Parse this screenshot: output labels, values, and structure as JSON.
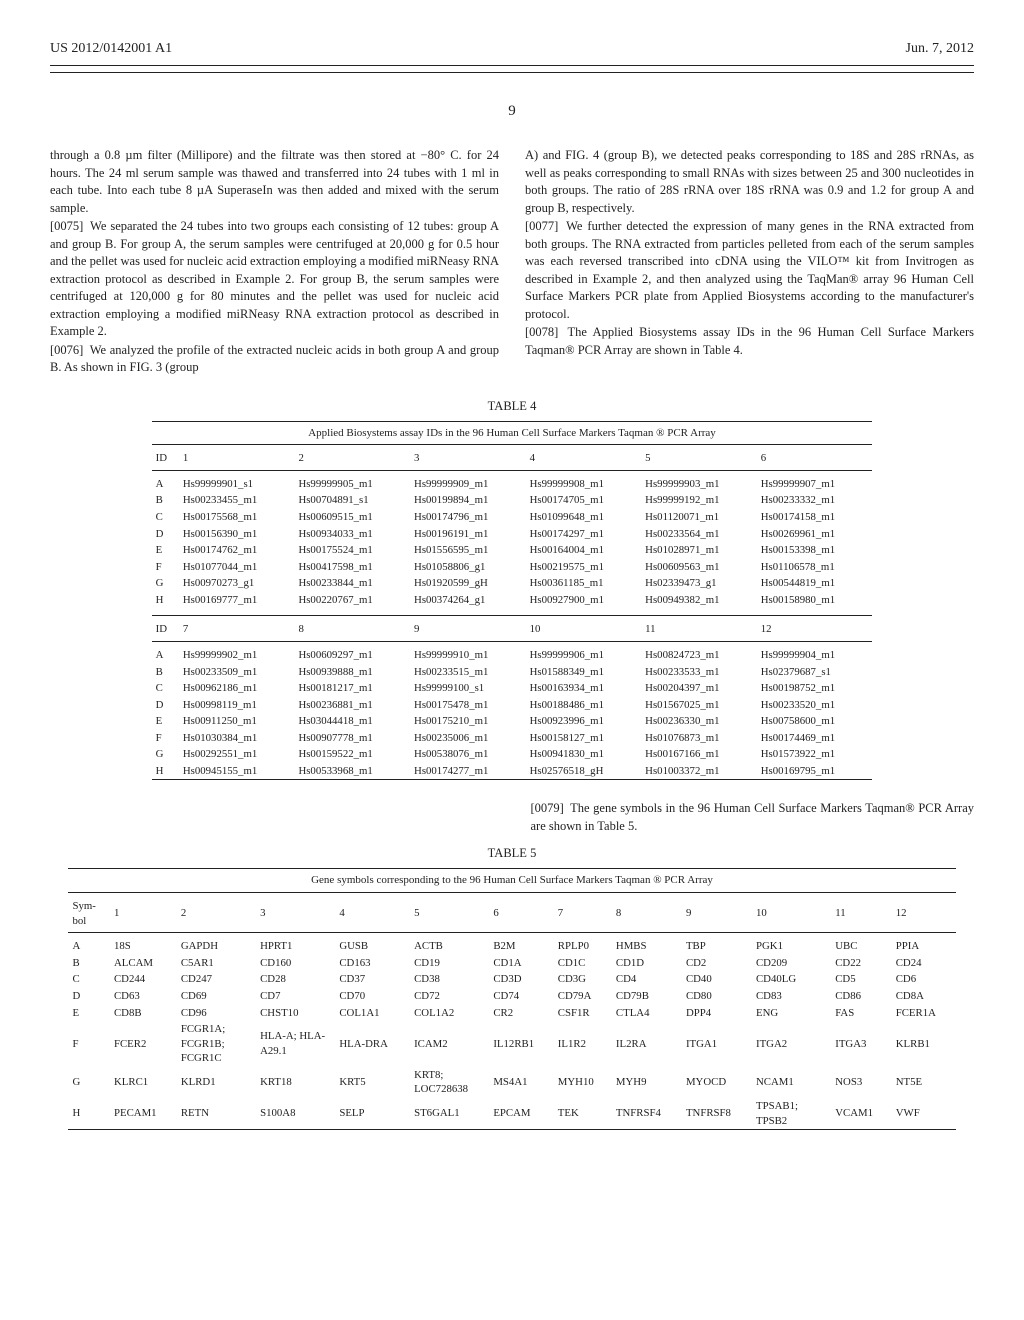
{
  "header": {
    "patent_id": "US 2012/0142001 A1",
    "date": "Jun. 7, 2012"
  },
  "page_number": "9",
  "left_col": {
    "p1": "through a 0.8 µm filter (Millipore) and the filtrate was then stored at −80° C. for 24 hours. The 24 ml serum sample was thawed and transferred into 24 tubes with 1 ml in each tube. Into each tube 8 µA SuperaseIn was then added and mixed with the serum sample.",
    "p2_num": "[0075]",
    "p2": "We separated the 24 tubes into two groups each consisting of 12 tubes: group A and group B. For group A, the serum samples were centrifuged at 20,000 g for 0.5 hour and the pellet was used for nucleic acid extraction employing a modified miRNeasy RNA extraction protocol as described in Example 2. For group B, the serum samples were centrifuged at 120,000 g for 80 minutes and the pellet was used for nucleic acid extraction employing a modified miRNeasy RNA extraction protocol as described in Example 2.",
    "p3_num": "[0076]",
    "p3": "We analyzed the profile of the extracted nucleic acids in both group A and group B. As shown in FIG. 3 (group"
  },
  "right_col": {
    "p1": "A) and FIG. 4 (group B), we detected peaks corresponding to 18S and 28S rRNAs, as well as peaks corresponding to small RNAs with sizes between 25 and 300 nucleotides in both groups. The ratio of 28S rRNA over 18S rRNA was 0.9 and 1.2 for group A and group B, respectively.",
    "p2_num": "[0077]",
    "p2": "We further detected the expression of many genes in the RNA extracted from both groups. The RNA extracted from particles pelleted from each of the serum samples was each reversed transcribed into cDNA using the VILO™ kit from Invitrogen as described in Example 2, and then analyzed using the TaqMan® array 96 Human Cell Surface Markers PCR plate from Applied Biosystems according to the manufacturer's protocol.",
    "p3_num": "[0078]",
    "p3": "The Applied Biosystems assay IDs in the 96 Human Cell Surface Markers Taqman® PCR Array are shown in Table 4."
  },
  "table4": {
    "label": "TABLE 4",
    "caption": "Applied Biosystems assay IDs in the 96 Human Cell Surface Markers Taqman ® PCR Array",
    "section1": {
      "head": [
        "ID",
        "1",
        "2",
        "3",
        "4",
        "5",
        "6"
      ],
      "rows": [
        [
          "A",
          "Hs99999901_s1",
          "Hs99999905_m1",
          "Hs99999909_m1",
          "Hs99999908_m1",
          "Hs99999903_m1",
          "Hs99999907_m1"
        ],
        [
          "B",
          "Hs00233455_m1",
          "Hs00704891_s1",
          "Hs00199894_m1",
          "Hs00174705_m1",
          "Hs99999192_m1",
          "Hs00233332_m1"
        ],
        [
          "C",
          "Hs00175568_m1",
          "Hs00609515_m1",
          "Hs00174796_m1",
          "Hs01099648_m1",
          "Hs01120071_m1",
          "Hs00174158_m1"
        ],
        [
          "D",
          "Hs00156390_m1",
          "Hs00934033_m1",
          "Hs00196191_m1",
          "Hs00174297_m1",
          "Hs00233564_m1",
          "Hs00269961_m1"
        ],
        [
          "E",
          "Hs00174762_m1",
          "Hs00175524_m1",
          "Hs01556595_m1",
          "Hs00164004_m1",
          "Hs01028971_m1",
          "Hs00153398_m1"
        ],
        [
          "F",
          "Hs01077044_m1",
          "Hs00417598_m1",
          "Hs01058806_g1",
          "Hs00219575_m1",
          "Hs00609563_m1",
          "Hs01106578_m1"
        ],
        [
          "G",
          "Hs00970273_g1",
          "Hs00233844_m1",
          "Hs01920599_gH",
          "Hs00361185_m1",
          "Hs02339473_g1",
          "Hs00544819_m1"
        ],
        [
          "H",
          "Hs00169777_m1",
          "Hs00220767_m1",
          "Hs00374264_g1",
          "Hs00927900_m1",
          "Hs00949382_m1",
          "Hs00158980_m1"
        ]
      ]
    },
    "section2": {
      "head": [
        "ID",
        "7",
        "8",
        "9",
        "10",
        "11",
        "12"
      ],
      "rows": [
        [
          "A",
          "Hs99999902_m1",
          "Hs00609297_m1",
          "Hs99999910_m1",
          "Hs99999906_m1",
          "Hs00824723_m1",
          "Hs99999904_m1"
        ],
        [
          "B",
          "Hs00233509_m1",
          "Hs00939888_m1",
          "Hs00233515_m1",
          "Hs01588349_m1",
          "Hs00233533_m1",
          "Hs02379687_s1"
        ],
        [
          "C",
          "Hs00962186_m1",
          "Hs00181217_m1",
          "Hs99999100_s1",
          "Hs00163934_m1",
          "Hs00204397_m1",
          "Hs00198752_m1"
        ],
        [
          "D",
          "Hs00998119_m1",
          "Hs00236881_m1",
          "Hs00175478_m1",
          "Hs00188486_m1",
          "Hs01567025_m1",
          "Hs00233520_m1"
        ],
        [
          "E",
          "Hs00911250_m1",
          "Hs03044418_m1",
          "Hs00175210_m1",
          "Hs00923996_m1",
          "Hs00236330_m1",
          "Hs00758600_m1"
        ],
        [
          "F",
          "Hs01030384_m1",
          "Hs00907778_m1",
          "Hs00235006_m1",
          "Hs00158127_m1",
          "Hs01076873_m1",
          "Hs00174469_m1"
        ],
        [
          "G",
          "Hs00292551_m1",
          "Hs00159522_m1",
          "Hs00538076_m1",
          "Hs00941830_m1",
          "Hs00167166_m1",
          "Hs01573922_m1"
        ],
        [
          "H",
          "Hs00945155_m1",
          "Hs00533968_m1",
          "Hs00174277_m1",
          "Hs02576518_gH",
          "Hs01003372_m1",
          "Hs00169795_m1"
        ]
      ]
    }
  },
  "mid_para": {
    "num": "[0079]",
    "text": "The gene symbols in the 96 Human Cell Surface Markers Taqman® PCR Array are shown in Table 5."
  },
  "table5": {
    "label": "TABLE 5",
    "caption": "Gene symbols corresponding to the 96 Human Cell Surface Markers Taqman ® PCR Array",
    "head": [
      "Sym-\nbol",
      "1",
      "2",
      "3",
      "4",
      "5",
      "6",
      "7",
      "8",
      "9",
      "10",
      "11",
      "12"
    ],
    "rows": [
      [
        "A",
        "18S",
        "GAPDH",
        "HPRT1",
        "GUSB",
        "ACTB",
        "B2M",
        "RPLP0",
        "HMBS",
        "TBP",
        "PGK1",
        "UBC",
        "PPIA"
      ],
      [
        "B",
        "ALCAM",
        "C5AR1",
        "CD160",
        "CD163",
        "CD19",
        "CD1A",
        "CD1C",
        "CD1D",
        "CD2",
        "CD209",
        "CD22",
        "CD24"
      ],
      [
        "C",
        "CD244",
        "CD247",
        "CD28",
        "CD37",
        "CD38",
        "CD3D",
        "CD3G",
        "CD4",
        "CD40",
        "CD40LG",
        "CD5",
        "CD6"
      ],
      [
        "D",
        "CD63",
        "CD69",
        "CD7",
        "CD70",
        "CD72",
        "CD74",
        "CD79A",
        "CD79B",
        "CD80",
        "CD83",
        "CD86",
        "CD8A"
      ],
      [
        "E",
        "CD8B",
        "CD96",
        "CHST10",
        "COL1A1",
        "COL1A2",
        "CR2",
        "CSF1R",
        "CTLA4",
        "DPP4",
        "ENG",
        "FAS",
        "FCER1A"
      ],
      [
        "F",
        "FCER2",
        "FCGR1A; FCGR1B; FCGR1C",
        "HLA-A; HLA-A29.1",
        "HLA-DRA",
        "ICAM2",
        "IL12RB1",
        "IL1R2",
        "IL2RA",
        "ITGA1",
        "ITGA2",
        "ITGA3",
        "KLRB1"
      ],
      [
        "G",
        "KLRC1",
        "KLRD1",
        "KRT18",
        "KRT5",
        "KRT8; LOC728638",
        "MS4A1",
        "MYH10",
        "MYH9",
        "MYOCD",
        "NCAM1",
        "NOS3",
        "NT5E"
      ],
      [
        "H",
        "PECAM1",
        "RETN",
        "S100A8",
        "SELP",
        "ST6GAL1",
        "EPCAM",
        "TEK",
        "TNFRSF4",
        "TNFRSF8",
        "TPSAB1; TPSB2",
        "VCAM1",
        "VWF"
      ]
    ]
  }
}
